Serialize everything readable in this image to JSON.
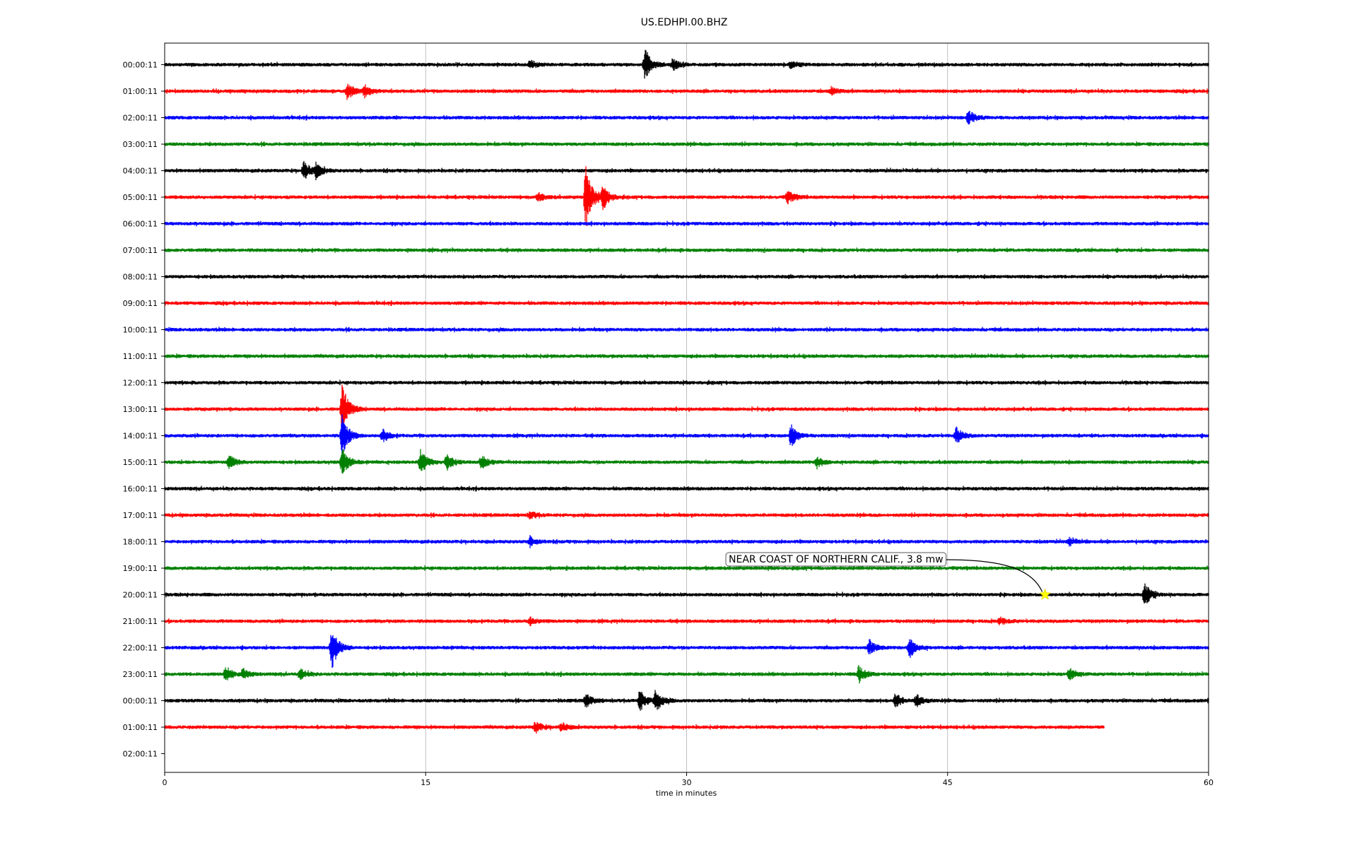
{
  "chart_data": {
    "type": "line",
    "title": "US.EDHPI.00.BHZ",
    "xlabel": "time in minutes",
    "ylabel": "",
    "xlim": [
      0,
      60
    ],
    "xticks": [
      0,
      15,
      30,
      45,
      60
    ],
    "grid": "vertical",
    "colors": [
      "#000000",
      "#ff0000",
      "#0000ff",
      "#008000"
    ],
    "rows": [
      {
        "label": "00:00:11",
        "color": "#000000",
        "end": 60,
        "events": [
          {
            "t": 21,
            "a": 6
          },
          {
            "t": 27.6,
            "a": 22
          },
          {
            "t": 29.2,
            "a": 8
          },
          {
            "t": 36,
            "a": 5
          }
        ]
      },
      {
        "label": "01:00:11",
        "color": "#ff0000",
        "end": 60,
        "events": [
          {
            "t": 10.5,
            "a": 12
          },
          {
            "t": 11.5,
            "a": 8
          },
          {
            "t": 38.3,
            "a": 5
          }
        ]
      },
      {
        "label": "02:00:11",
        "color": "#0000ff",
        "end": 60,
        "events": [
          {
            "t": 46.2,
            "a": 10
          }
        ]
      },
      {
        "label": "03:00:11",
        "color": "#008000",
        "end": 60,
        "events": []
      },
      {
        "label": "04:00:11",
        "color": "#000000",
        "end": 60,
        "events": [
          {
            "t": 8,
            "a": 14
          },
          {
            "t": 8.7,
            "a": 10
          }
        ]
      },
      {
        "label": "05:00:11",
        "color": "#ff0000",
        "end": 60,
        "events": [
          {
            "t": 24.2,
            "a": 45
          },
          {
            "t": 25.2,
            "a": 16
          },
          {
            "t": 35.8,
            "a": 9
          },
          {
            "t": 21.5,
            "a": 5
          }
        ]
      },
      {
        "label": "06:00:11",
        "color": "#0000ff",
        "end": 60,
        "events": []
      },
      {
        "label": "07:00:11",
        "color": "#008000",
        "end": 60,
        "events": []
      },
      {
        "label": "08:00:11",
        "color": "#000000",
        "end": 60,
        "events": []
      },
      {
        "label": "09:00:11",
        "color": "#ff0000",
        "end": 60,
        "events": []
      },
      {
        "label": "10:00:11",
        "color": "#0000ff",
        "end": 60,
        "events": []
      },
      {
        "label": "11:00:11",
        "color": "#008000",
        "end": 60,
        "events": []
      },
      {
        "label": "12:00:11",
        "color": "#000000",
        "end": 60,
        "events": []
      },
      {
        "label": "13:00:11",
        "color": "#ff0000",
        "end": 60,
        "events": [
          {
            "t": 10.2,
            "a": 35
          }
        ]
      },
      {
        "label": "14:00:11",
        "color": "#0000ff",
        "end": 60,
        "events": [
          {
            "t": 10.2,
            "a": 30
          },
          {
            "t": 12.5,
            "a": 9
          },
          {
            "t": 36,
            "a": 16
          },
          {
            "t": 45.5,
            "a": 12
          }
        ]
      },
      {
        "label": "15:00:11",
        "color": "#008000",
        "end": 60,
        "events": [
          {
            "t": 3.7,
            "a": 10
          },
          {
            "t": 10.2,
            "a": 20
          },
          {
            "t": 14.7,
            "a": 18
          },
          {
            "t": 16.2,
            "a": 12
          },
          {
            "t": 18.2,
            "a": 10
          },
          {
            "t": 37.5,
            "a": 8
          }
        ]
      },
      {
        "label": "16:00:11",
        "color": "#000000",
        "end": 60,
        "events": []
      },
      {
        "label": "17:00:11",
        "color": "#ff0000",
        "end": 60,
        "events": [
          {
            "t": 21,
            "a": 5
          }
        ]
      },
      {
        "label": "18:00:11",
        "color": "#0000ff",
        "end": 60,
        "events": [
          {
            "t": 21,
            "a": 6
          },
          {
            "t": 52,
            "a": 5
          }
        ]
      },
      {
        "label": "19:00:11",
        "color": "#008000",
        "end": 60,
        "events": []
      },
      {
        "label": "20:00:11",
        "color": "#000000",
        "end": 60,
        "events": [
          {
            "t": 56.3,
            "a": 18
          }
        ]
      },
      {
        "label": "21:00:11",
        "color": "#ff0000",
        "end": 60,
        "events": [
          {
            "t": 21,
            "a": 5
          },
          {
            "t": 48,
            "a": 5
          }
        ]
      },
      {
        "label": "22:00:11",
        "color": "#0000ff",
        "end": 60,
        "events": [
          {
            "t": 9.6,
            "a": 32
          },
          {
            "t": 40.5,
            "a": 10
          },
          {
            "t": 42.8,
            "a": 16
          }
        ]
      },
      {
        "label": "23:00:11",
        "color": "#008000",
        "end": 60,
        "events": [
          {
            "t": 3.5,
            "a": 9
          },
          {
            "t": 4.5,
            "a": 7
          },
          {
            "t": 7.8,
            "a": 7
          },
          {
            "t": 39.9,
            "a": 12
          },
          {
            "t": 52,
            "a": 8
          }
        ]
      },
      {
        "label": "00:00:11",
        "color": "#000000",
        "end": 60,
        "events": [
          {
            "t": 24.2,
            "a": 10
          },
          {
            "t": 27.3,
            "a": 15
          },
          {
            "t": 28.2,
            "a": 16
          },
          {
            "t": 42,
            "a": 10
          },
          {
            "t": 43.2,
            "a": 8
          }
        ]
      },
      {
        "label": "01:00:11",
        "color": "#ff0000",
        "end": 54,
        "events": [
          {
            "t": 21.3,
            "a": 8
          },
          {
            "t": 22.8,
            "a": 6
          }
        ]
      },
      {
        "label": "02:00:11",
        "color": "#000000",
        "end": 0,
        "events": []
      }
    ],
    "annotation": {
      "text": "NEAR COAST OF NORTHERN CALIF., 3.8 mw",
      "row": 20,
      "t": 50.6,
      "marker_color": "#ffff00"
    }
  }
}
